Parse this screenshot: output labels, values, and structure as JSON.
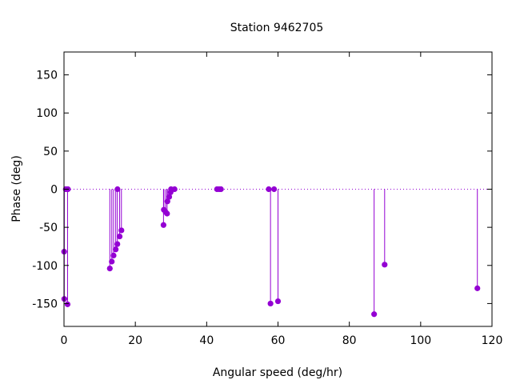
{
  "chart_data": {
    "type": "scatter",
    "style": "impulses-with-points",
    "title": "Station 9462705",
    "xlabel": "Angular speed (deg/hr)",
    "ylabel": "Phase (deg)",
    "xlim": [
      0,
      120
    ],
    "ylim": [
      -180,
      180
    ],
    "xticks": [
      0,
      20,
      40,
      60,
      80,
      100,
      120
    ],
    "yticks": [
      -150,
      -100,
      -50,
      0,
      50,
      100,
      150
    ],
    "zero_line": "dotted",
    "grid": false,
    "legend": "none",
    "color": "#9400d3",
    "points": [
      {
        "x": 0.04,
        "y": -82
      },
      {
        "x": 0.08,
        "y": -144
      },
      {
        "x": 0.5,
        "y": 0
      },
      {
        "x": 1.0,
        "y": -151
      },
      {
        "x": 1.1,
        "y": 0
      },
      {
        "x": 12.85,
        "y": -104
      },
      {
        "x": 13.4,
        "y": -95
      },
      {
        "x": 13.9,
        "y": -87
      },
      {
        "x": 14.5,
        "y": -79
      },
      {
        "x": 14.96,
        "y": -72
      },
      {
        "x": 15.0,
        "y": 0
      },
      {
        "x": 15.6,
        "y": -62
      },
      {
        "x": 16.1,
        "y": -54
      },
      {
        "x": 27.9,
        "y": -47
      },
      {
        "x": 28.0,
        "y": -27
      },
      {
        "x": 28.5,
        "y": -30
      },
      {
        "x": 28.9,
        "y": -32
      },
      {
        "x": 29.0,
        "y": -16
      },
      {
        "x": 29.5,
        "y": -10
      },
      {
        "x": 29.9,
        "y": -4
      },
      {
        "x": 30.0,
        "y": 0
      },
      {
        "x": 31.0,
        "y": 0
      },
      {
        "x": 42.9,
        "y": 0
      },
      {
        "x": 43.5,
        "y": 0
      },
      {
        "x": 44.0,
        "y": 0
      },
      {
        "x": 57.4,
        "y": 0
      },
      {
        "x": 57.9,
        "y": -150
      },
      {
        "x": 58.9,
        "y": 0
      },
      {
        "x": 60.0,
        "y": -147
      },
      {
        "x": 86.95,
        "y": -164
      },
      {
        "x": 89.9,
        "y": -99
      },
      {
        "x": 115.9,
        "y": -130
      }
    ]
  }
}
